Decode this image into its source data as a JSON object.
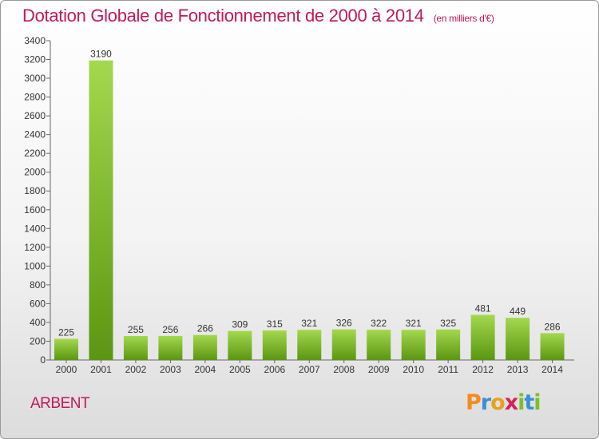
{
  "chart_data": {
    "type": "bar",
    "title": "Dotation Globale de Fonctionnement de 2000 à 2014",
    "unit": "(en milliers d'€)",
    "categories": [
      "2000",
      "2001",
      "2002",
      "2003",
      "2004",
      "2005",
      "2006",
      "2007",
      "2008",
      "2009",
      "2010",
      "2011",
      "2012",
      "2013",
      "2014"
    ],
    "values": [
      225,
      3190,
      255,
      256,
      266,
      309,
      315,
      321,
      326,
      322,
      321,
      325,
      481,
      449,
      286
    ],
    "ylim": [
      0,
      3400
    ],
    "yticks": [
      0,
      200,
      400,
      600,
      800,
      1000,
      1200,
      1400,
      1600,
      1800,
      2000,
      2200,
      2400,
      2600,
      2800,
      3000,
      3200,
      3400
    ],
    "grid": false,
    "legend": "none"
  },
  "location_label": "ARBENT",
  "logo": {
    "letters": [
      "P",
      "r",
      "o",
      "x",
      "i",
      "t",
      "i"
    ]
  },
  "colors": {
    "title": "#c2185b",
    "bar_light": "#9ed24a",
    "bar_dark": "#5f9a14"
  }
}
